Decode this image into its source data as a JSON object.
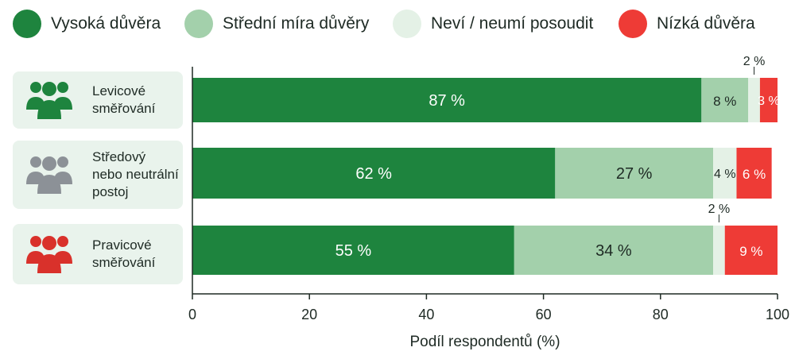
{
  "legend": [
    {
      "label": "Vysoká důvěra",
      "color": "#1e843e"
    },
    {
      "label": "Střední míra důvěry",
      "color": "#a3d0ab"
    },
    {
      "label": "Neví / neumí posoudit",
      "color": "#e4f1e6"
    },
    {
      "label": "Nízká důvěra",
      "color": "#ee3b36"
    }
  ],
  "rows": [
    {
      "lines": [
        "Levicové",
        "směřování"
      ],
      "icon": "people-group-icon",
      "icon_color": "#1e843e"
    },
    {
      "lines": [
        "Středový",
        "nebo neutrální",
        "postoj"
      ],
      "icon": "people-group-icon",
      "icon_color": "#8c9197"
    },
    {
      "lines": [
        "Pravicové",
        "směřování"
      ],
      "icon": "people-group-icon",
      "icon_color": "#d9312b"
    }
  ],
  "chart_data": {
    "type": "bar",
    "orientation": "horizontal",
    "stacked": true,
    "categories": [
      "Levicové směřování",
      "Středový nebo neutrální postoj",
      "Pravicové směřování"
    ],
    "series": [
      {
        "name": "Vysoká důvěra",
        "color": "#1e843e",
        "values": [
          87,
          62,
          55
        ],
        "labels": [
          "87 %",
          "62 %",
          "55 %"
        ]
      },
      {
        "name": "Střední míra důvěry",
        "color": "#a3d0ab",
        "values": [
          8,
          27,
          34
        ],
        "labels": [
          "8 %",
          "27 %",
          "34 %"
        ]
      },
      {
        "name": "Neví / neumí posoudit",
        "color": "#e4f1e6",
        "values": [
          2,
          4,
          2
        ],
        "labels": [
          "2 %",
          "4 %",
          "2 %"
        ]
      },
      {
        "name": "Nízká důvěra",
        "color": "#ee3b36",
        "values": [
          3,
          6,
          9
        ],
        "labels": [
          "3 %",
          "6 %",
          "9 %"
        ]
      }
    ],
    "xlabel": "Podíl respondentů (%)",
    "xlim": [
      0,
      100
    ],
    "xticks": [
      0,
      20,
      40,
      60,
      80,
      100
    ],
    "grid": false,
    "legend_position": "top"
  }
}
